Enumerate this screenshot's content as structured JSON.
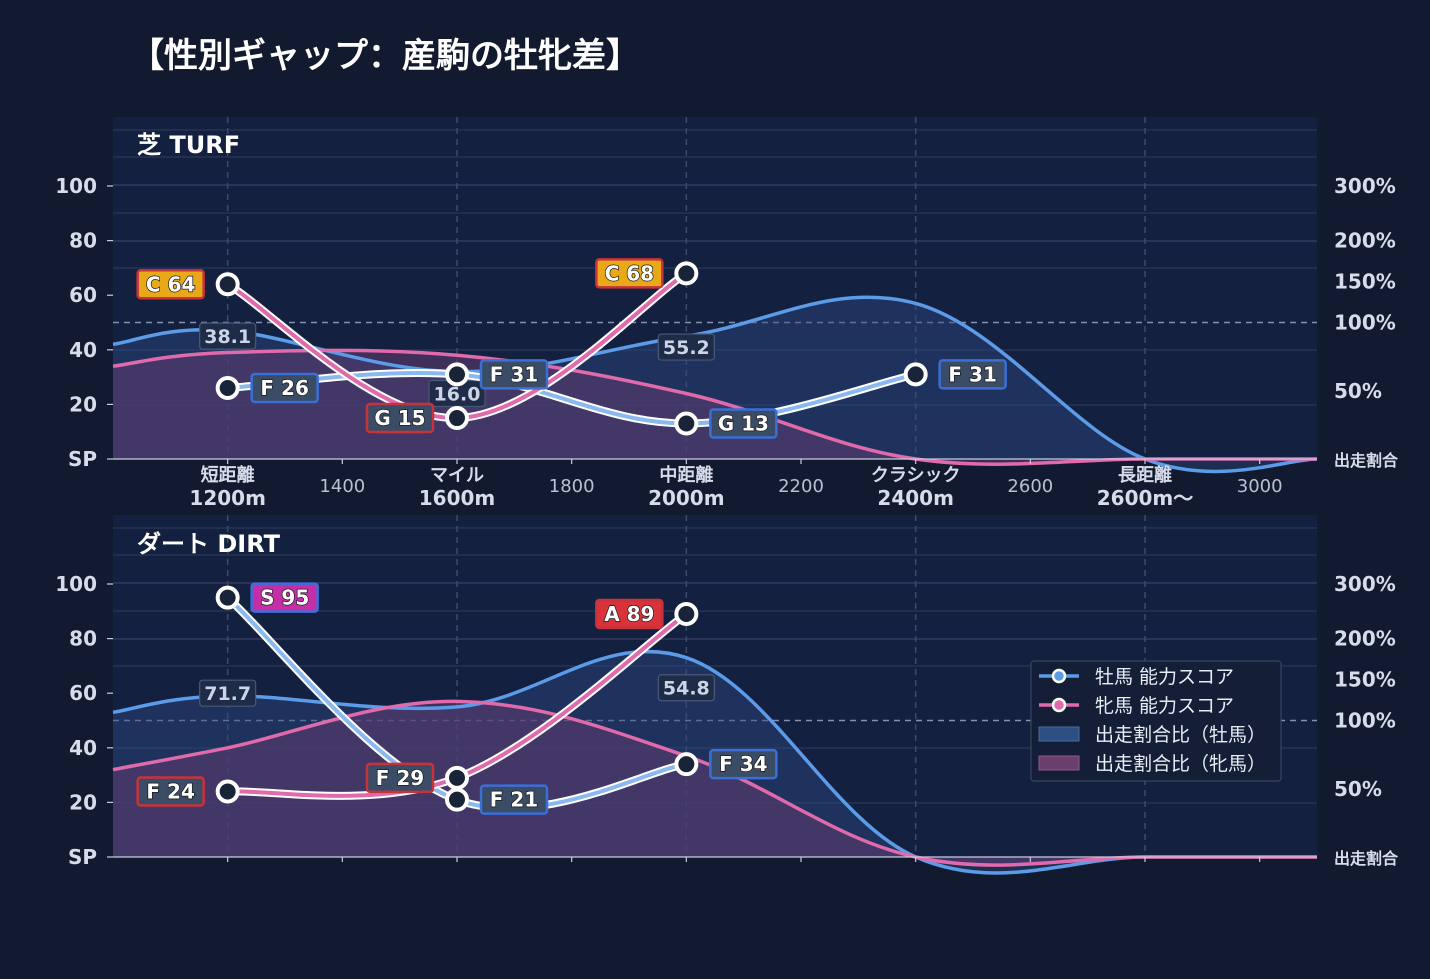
{
  "title": "【性別ギャップ：産駒の牡牝差】",
  "colors": {
    "background": "#111a2e",
    "plot_bg": "#142040",
    "male": "#5b9be8",
    "female": "#e06aab",
    "male_fill": "#2a4a80",
    "female_fill": "#5a3a6e",
    "rank_C": "#e8a818",
    "rank_S": "#c42fa8",
    "rank_A": "#d8333a",
    "rank_F": "#3b4c66",
    "rank_G": "#3b4c66",
    "border_male": "#3a6fd8",
    "border_female": "#c8323a"
  },
  "axes": {
    "left_ticks": [
      "SP",
      "20",
      "40",
      "60",
      "80",
      "100"
    ],
    "left_tick_values": [
      0,
      20,
      40,
      60,
      80,
      100
    ],
    "right_ticks": [
      "出走割合",
      "50%",
      "100%",
      "150%",
      "200%",
      "300%"
    ],
    "right_tick_positions": [
      0,
      25,
      50,
      65,
      80,
      100
    ],
    "x_ticks": [
      {
        "x": 1200,
        "line1": "短距離",
        "line2": "1200m",
        "major": true
      },
      {
        "x": 1400,
        "line1": "1400",
        "line2": "",
        "major": false
      },
      {
        "x": 1600,
        "line1": "マイル",
        "line2": "1600m",
        "major": true
      },
      {
        "x": 1800,
        "line1": "1800",
        "line2": "",
        "major": false
      },
      {
        "x": 2000,
        "line1": "中距離",
        "line2": "2000m",
        "major": true
      },
      {
        "x": 2200,
        "line1": "2200",
        "line2": "",
        "major": false
      },
      {
        "x": 2400,
        "line1": "クラシック",
        "line2": "2400m",
        "major": true
      },
      {
        "x": 2600,
        "line1": "2600",
        "line2": "",
        "major": false
      },
      {
        "x": 2800,
        "line1": "長距離",
        "line2": "2600m〜",
        "major": true
      },
      {
        "x": 3000,
        "line1": "3000",
        "line2": "",
        "major": false
      }
    ],
    "xlim": [
      1000,
      3100
    ],
    "ylim": [
      0,
      100
    ]
  },
  "legend": {
    "male_score": "牡馬 能力スコア",
    "female_score": "牝馬 能力スコア",
    "male_ratio": "出走割合比（牡馬）",
    "female_ratio": "出走割合比（牝馬）"
  },
  "chart_data": [
    {
      "type": "line",
      "panel": "芝 TURF",
      "show_x_labels": true,
      "series": [
        {
          "name": "牡馬 能力スコア",
          "x": [
            1200,
            1600,
            2000,
            2400
          ],
          "y": [
            26,
            31,
            13,
            31
          ],
          "labels": [
            "F 26",
            "F 31",
            "G 13",
            "F 31"
          ],
          "ranks": [
            "F",
            "F",
            "G",
            "F"
          ]
        },
        {
          "name": "牝馬 能力スコア",
          "x": [
            1200,
            1600,
            2000
          ],
          "y": [
            64,
            15,
            68
          ],
          "labels": [
            "C 64",
            "G 15",
            "C 68"
          ],
          "ranks": [
            "C",
            "G",
            "C"
          ]
        },
        {
          "name": "出走割合比（牡馬）",
          "x": [
            1000,
            1200,
            1600,
            2000,
            2400,
            2800,
            3100
          ],
          "y": [
            42,
            47,
            32,
            45,
            57,
            0,
            0
          ]
        },
        {
          "name": "出走割合比（牝馬）",
          "x": [
            1000,
            1200,
            1600,
            2000,
            2400,
            2800,
            3100
          ],
          "y": [
            34,
            39,
            38,
            24,
            0,
            0,
            0
          ]
        }
      ],
      "value_labels": [
        {
          "x": 1200,
          "y": 45,
          "text": "38.1"
        },
        {
          "x": 1600,
          "y": 24,
          "text": "16.0"
        },
        {
          "x": 2000,
          "y": 41,
          "text": "55.2"
        }
      ]
    },
    {
      "type": "line",
      "panel": "ダート DIRT",
      "show_x_labels": false,
      "series": [
        {
          "name": "牡馬 能力スコア",
          "x": [
            1200,
            1600,
            2000
          ],
          "y": [
            95,
            21,
            34
          ],
          "labels": [
            "S 95",
            "F 21",
            "F 34"
          ],
          "ranks": [
            "S",
            "F",
            "F"
          ]
        },
        {
          "name": "牝馬 能力スコア",
          "x": [
            1200,
            1600,
            2000
          ],
          "y": [
            24,
            29,
            89
          ],
          "labels": [
            "F 24",
            "F 29",
            "A 89"
          ],
          "ranks": [
            "F",
            "F",
            "A"
          ]
        },
        {
          "name": "出走割合比（牡馬）",
          "x": [
            1000,
            1200,
            1600,
            2000,
            2400,
            2800,
            3100
          ],
          "y": [
            53,
            59,
            55,
            73,
            0,
            0,
            0
          ]
        },
        {
          "name": "出走割合比（牝馬）",
          "x": [
            1000,
            1200,
            1600,
            2000,
            2400,
            2800,
            3100
          ],
          "y": [
            32,
            40,
            57,
            37,
            0,
            0,
            0
          ]
        }
      ],
      "value_labels": [
        {
          "x": 1200,
          "y": 60,
          "text": "71.7"
        },
        {
          "x": 2000,
          "y": 62,
          "text": "54.8"
        }
      ]
    }
  ]
}
